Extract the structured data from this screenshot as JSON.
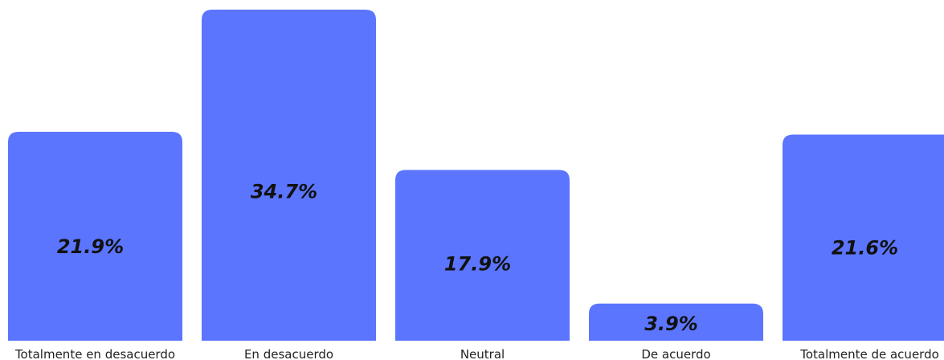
{
  "chart_data": {
    "type": "bar",
    "title": "",
    "xlabel": "",
    "ylabel": "",
    "categories": [
      "Totalmente en desacuerdo",
      "En desacuerdo",
      "Neutral",
      "De acuerdo",
      "Totalmente de acuerdo"
    ],
    "values": [
      21.9,
      34.7,
      17.9,
      3.9,
      21.6
    ],
    "value_labels": [
      "21.9%",
      "34.7%",
      "17.9%",
      "3.9%",
      "21.6%"
    ],
    "unit": "%",
    "ylim": [
      0,
      34.7
    ],
    "grid": false,
    "legend": "none",
    "bar_color": "#5b75ff"
  }
}
